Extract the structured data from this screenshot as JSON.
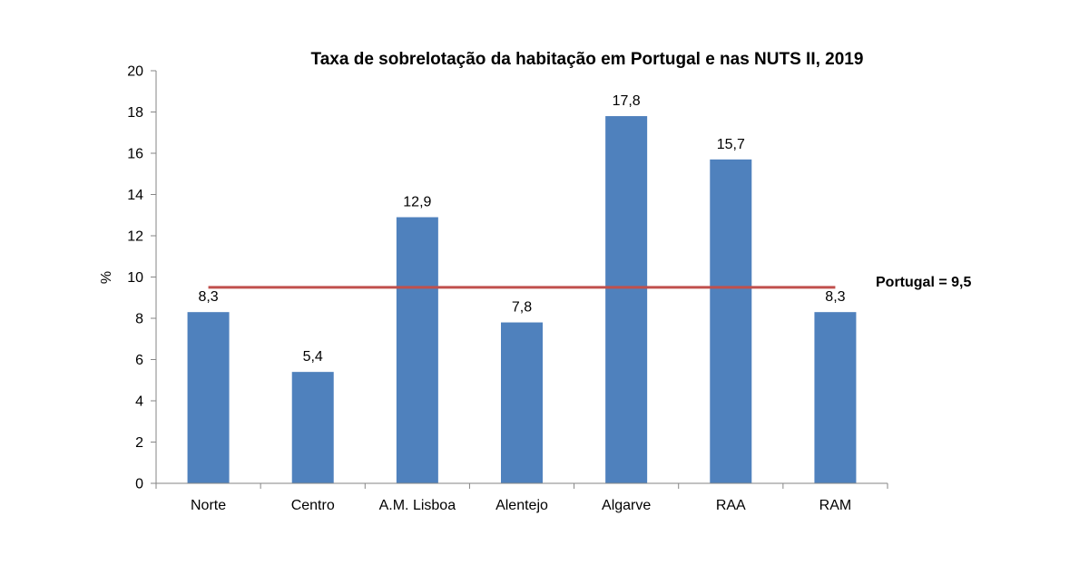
{
  "chart_data": {
    "type": "bar",
    "title": "Taxa de sobrelotação da habitação em Portugal e nas  NUTS II,  2019",
    "xlabel": "",
    "ylabel": "%",
    "ylim": [
      0,
      20
    ],
    "yticks": [
      0,
      2,
      4,
      6,
      8,
      10,
      12,
      14,
      16,
      18,
      20
    ],
    "grid": false,
    "categories": [
      "Norte",
      "Centro",
      "A.M. Lisboa",
      "Alentejo",
      "Algarve",
      "RAA",
      "RAM"
    ],
    "values": [
      8.3,
      5.4,
      12.9,
      7.8,
      17.8,
      15.7,
      8.3
    ],
    "data_labels": [
      "8,3",
      "5,4",
      "12,9",
      "7,8",
      "17,8",
      "15,7",
      "8,3"
    ],
    "bar_color": "#4f81bd",
    "reference_line": {
      "value": 9.5,
      "label": "Portugal = 9,5",
      "color": "#c0504d"
    }
  }
}
